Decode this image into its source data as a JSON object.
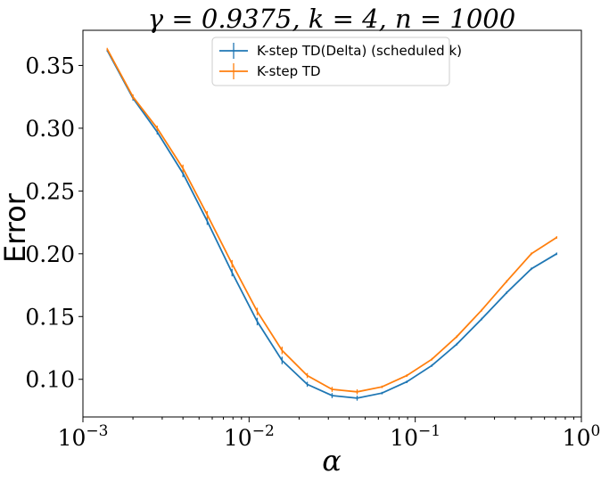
{
  "chart_data": {
    "type": "line",
    "title": "γ = 0.9375, k = 4, n = 1000",
    "xlabel": "α",
    "ylabel": "Error",
    "xscale": "log",
    "xlim": [
      0.001,
      1.0
    ],
    "ylim": [
      0.07,
      0.378
    ],
    "grid": false,
    "legend_position": "top-center",
    "x_ticks": [
      {
        "value": 0.001,
        "base": "10",
        "exp": "−3"
      },
      {
        "value": 0.01,
        "base": "10",
        "exp": "−2"
      },
      {
        "value": 0.1,
        "base": "10",
        "exp": "−1"
      },
      {
        "value": 1.0,
        "base": "10",
        "exp": "0"
      }
    ],
    "y_ticks": [
      {
        "value": 0.1,
        "label": "0.10"
      },
      {
        "value": 0.15,
        "label": "0.15"
      },
      {
        "value": 0.2,
        "label": "0.20"
      },
      {
        "value": 0.25,
        "label": "0.25"
      },
      {
        "value": 0.3,
        "label": "0.30"
      },
      {
        "value": 0.35,
        "label": "0.35"
      }
    ],
    "x": [
      0.0014,
      0.002,
      0.0028,
      0.004,
      0.0056,
      0.0079,
      0.0112,
      0.0158,
      0.0224,
      0.0316,
      0.0447,
      0.0631,
      0.0891,
      0.126,
      0.178,
      0.251,
      0.355,
      0.5,
      0.71
    ],
    "series": [
      {
        "name": "K-step TD(Delta) (scheduled k)",
        "color": "#1f77b4",
        "values": [
          0.362,
          0.324,
          0.297,
          0.264,
          0.226,
          0.185,
          0.146,
          0.115,
          0.096,
          0.087,
          0.085,
          0.089,
          0.098,
          0.111,
          0.128,
          0.148,
          0.169,
          0.188,
          0.2
        ],
        "errors": [
          0.001,
          0.002,
          0.002,
          0.003,
          0.003,
          0.003,
          0.003,
          0.003,
          0.002,
          0.002,
          0.002,
          0.001,
          0.001,
          0.001,
          0.001,
          0.001,
          0.001,
          0.001,
          0.001
        ]
      },
      {
        "name": "K-step TD",
        "color": "#ff7f0e",
        "values": [
          0.363,
          0.325,
          0.3,
          0.268,
          0.231,
          0.192,
          0.154,
          0.123,
          0.103,
          0.092,
          0.09,
          0.094,
          0.103,
          0.116,
          0.134,
          0.155,
          0.178,
          0.2,
          0.213
        ],
        "errors": [
          0.001,
          0.002,
          0.002,
          0.003,
          0.003,
          0.003,
          0.003,
          0.003,
          0.002,
          0.002,
          0.002,
          0.001,
          0.001,
          0.001,
          0.001,
          0.001,
          0.001,
          0.001,
          0.001
        ]
      }
    ]
  }
}
